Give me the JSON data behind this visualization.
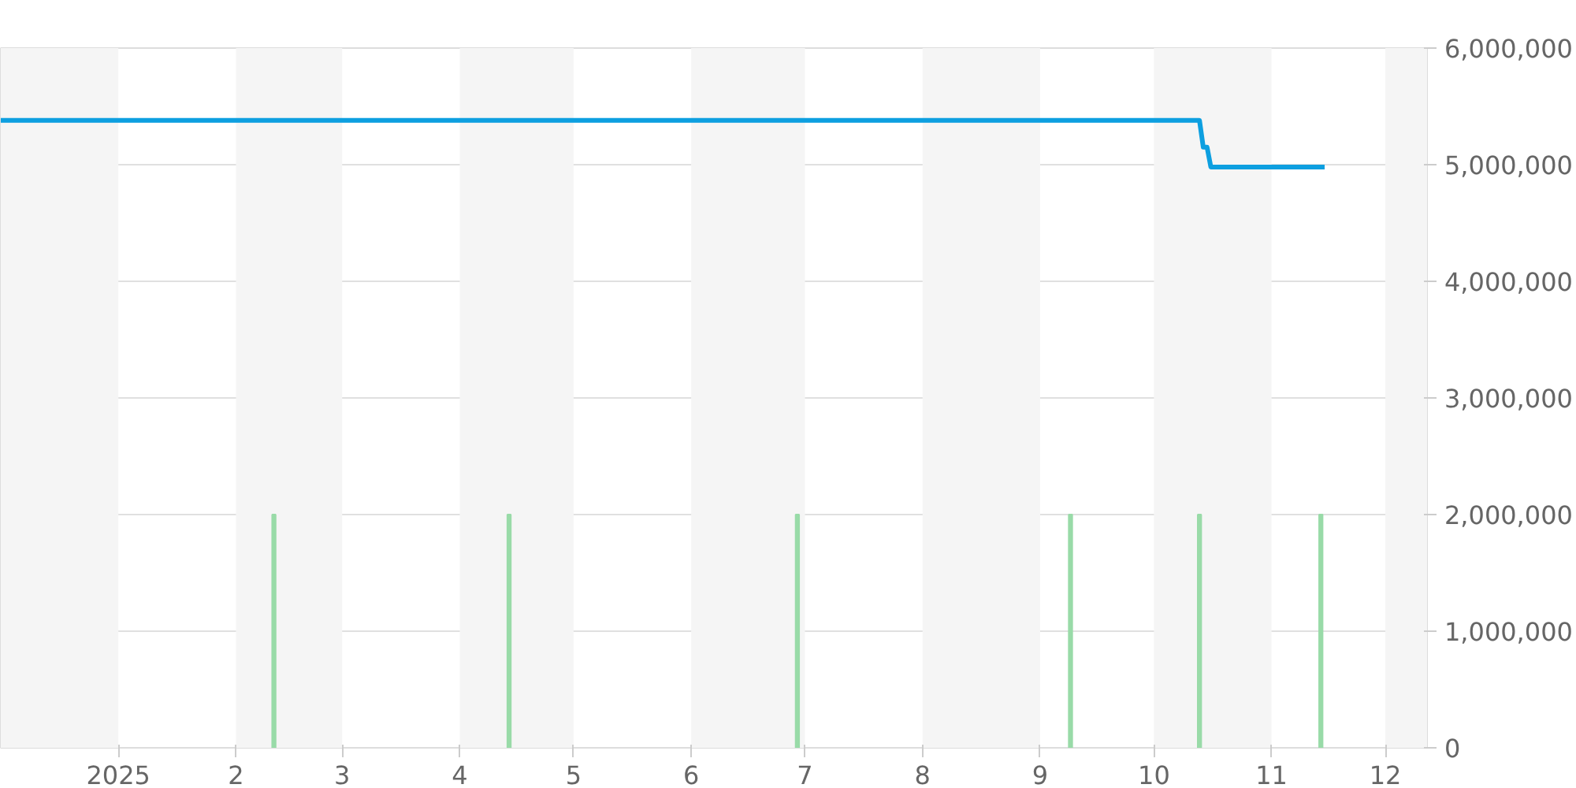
{
  "chart_data": {
    "type": "line",
    "xlim": [
      "2024-12-01",
      "2025-12-12"
    ],
    "xticks": [
      {
        "value": "2025-01-01",
        "label": "2025"
      },
      {
        "value": "2025-02-01",
        "label": "2"
      },
      {
        "value": "2025-03-01",
        "label": "3"
      },
      {
        "value": "2025-04-01",
        "label": "4"
      },
      {
        "value": "2025-05-01",
        "label": "5"
      },
      {
        "value": "2025-06-01",
        "label": "6"
      },
      {
        "value": "2025-07-01",
        "label": "7"
      },
      {
        "value": "2025-08-01",
        "label": "8"
      },
      {
        "value": "2025-09-01",
        "label": "9"
      },
      {
        "value": "2025-10-01",
        "label": "10"
      },
      {
        "value": "2025-11-01",
        "label": "11"
      },
      {
        "value": "2025-12-01",
        "label": "12"
      }
    ],
    "ylim": [
      0,
      6000000
    ],
    "yticks": [
      {
        "value": 0,
        "label": "0"
      },
      {
        "value": 1000000,
        "label": "1,000,000"
      },
      {
        "value": 2000000,
        "label": "2,000,000"
      },
      {
        "value": 3000000,
        "label": "3,000,000"
      },
      {
        "value": 4000000,
        "label": "4,000,000"
      },
      {
        "value": 5000000,
        "label": "5,000,000"
      },
      {
        "value": 6000000,
        "label": "6,000,000"
      }
    ],
    "grid": "y",
    "bands": [
      {
        "axis": "x",
        "from": "2024-12-01",
        "to": "2025-01-01",
        "color": "#f5f5f5"
      },
      {
        "axis": "x",
        "from": "2025-02-01",
        "to": "2025-03-01",
        "color": "#f5f5f5"
      },
      {
        "axis": "x",
        "from": "2025-04-01",
        "to": "2025-05-01",
        "color": "#f5f5f5"
      },
      {
        "axis": "x",
        "from": "2025-06-01",
        "to": "2025-07-01",
        "color": "#f5f5f5"
      },
      {
        "axis": "x",
        "from": "2025-08-01",
        "to": "2025-09-01",
        "color": "#f5f5f5"
      },
      {
        "axis": "x",
        "from": "2025-10-01",
        "to": "2025-11-01",
        "color": "#f5f5f5"
      },
      {
        "axis": "x",
        "from": "2025-12-01",
        "to": "2025-12-12",
        "color": "#f5f5f5"
      }
    ],
    "series": [
      {
        "type": "bar",
        "color": "#99dba8",
        "x": [
          "2025-02-11",
          "2025-04-14",
          "2025-06-29",
          "2025-09-09",
          "2025-10-13",
          "2025-11-14"
        ],
        "values": [
          2000000,
          2000000,
          2000000,
          2000000,
          2000000,
          2000000
        ]
      },
      {
        "color": "#0d9fe0",
        "x": [
          "2024-12-01",
          "2025-10-13",
          "2025-10-14",
          "2025-10-15",
          "2025-10-16",
          "2025-11-15"
        ],
        "values": [
          5380000,
          5380000,
          5150000,
          5150000,
          4980000,
          4980000
        ]
      }
    ]
  }
}
